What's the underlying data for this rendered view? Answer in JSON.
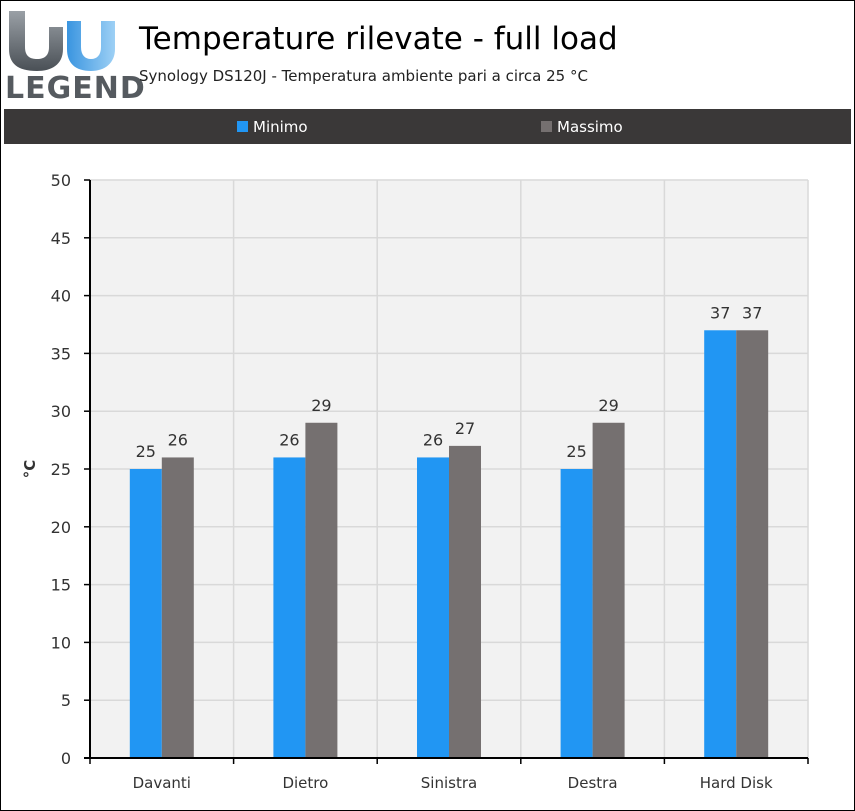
{
  "header": {
    "logo_text": "LEGEND",
    "title": "Temperature rilevate - full load",
    "subtitle": "Synology DS120J - Temperatura ambiente pari a circa 25 °C"
  },
  "colors": {
    "minimo": "#2196f3",
    "massimo": "#757070",
    "legend_background": "#3a3838",
    "plot_background": "#f2f2f2"
  },
  "chart_data": {
    "type": "bar",
    "title": "Temperature rilevate - full load",
    "subtitle": "Synology DS120J - Temperatura ambiente pari a circa 25 °C",
    "xlabel": "",
    "ylabel": "°C",
    "ylim": [
      0,
      50
    ],
    "yticks": [
      0,
      5,
      10,
      15,
      20,
      25,
      30,
      35,
      40,
      45,
      50
    ],
    "grid": true,
    "legend_position": "top",
    "categories": [
      "Davanti",
      "Dietro",
      "Sinistra",
      "Destra",
      "Hard Disk"
    ],
    "series": [
      {
        "name": "Minimo",
        "values": [
          25,
          26,
          26,
          25,
          37
        ]
      },
      {
        "name": "Massimo",
        "values": [
          26,
          29,
          27,
          29,
          37
        ]
      }
    ]
  }
}
